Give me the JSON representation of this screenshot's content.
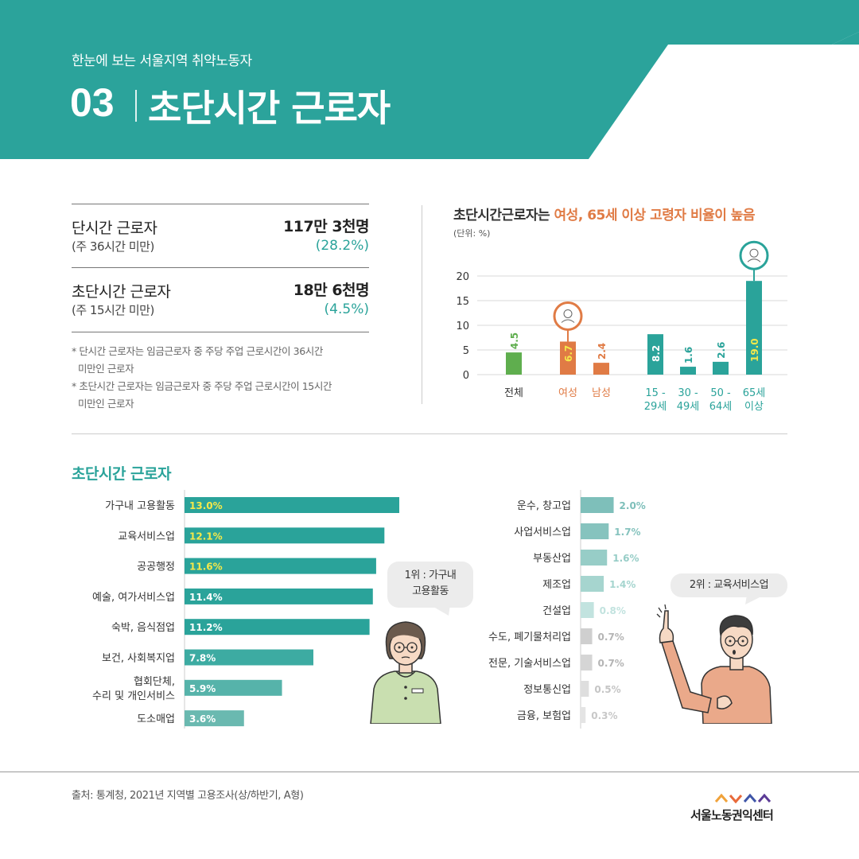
{
  "header": {
    "subtitle": "한눈에 보는 서울지역 취약노동자",
    "number": "03",
    "title": "초단시간 근로자"
  },
  "summary": [
    {
      "label": "단시간 근로자",
      "sub": "(주 36시간 미만)",
      "value": "117만 3천명",
      "pct": "(28.2%)"
    },
    {
      "label": "초단시간 근로자",
      "sub": "(주 15시간 미만)",
      "value": "18만 6천명",
      "pct": "(4.5%)"
    }
  ],
  "notes": [
    "* 단시간 근로자는 임금근로자 중 주당 주업 근로시간이 36시간",
    "미만인 근로자",
    "* 초단시간 근로자는 임금근로자 중 주당 주업 근로시간이 15시간",
    "미만인 근로자"
  ],
  "colors": {
    "teal": "#2aa39a",
    "orange": "#e07b45",
    "green": "#5fae4e",
    "yellow_label": "#f5e84a"
  },
  "chart_data": [
    {
      "type": "bar",
      "title_prefix": "초단시간근로자는 ",
      "title_highlight": "여성, 65세 이상 고령자 비율이 높음",
      "unit": "(단위: %)",
      "ylim": [
        0,
        20
      ],
      "yticks": [
        0,
        5,
        10,
        15,
        20
      ],
      "grid": true,
      "categories": [
        "전체",
        "여성",
        "남성",
        "15 - 29세",
        "30 - 49세",
        "50 - 64세",
        "65세 이상"
      ],
      "category_lines": [
        [
          "전체"
        ],
        [
          "여성"
        ],
        [
          "남성"
        ],
        [
          "15 -",
          "29세"
        ],
        [
          "30 -",
          "49세"
        ],
        [
          "50 -",
          "64세"
        ],
        [
          "65세",
          "이상"
        ]
      ],
      "value_labels": [
        "4.5",
        "6.7",
        "2.4",
        "8.2",
        "1.6",
        "2.6",
        "19.0"
      ],
      "values": [
        4.5,
        6.7,
        2.4,
        8.2,
        1.6,
        2.6,
        19.0
      ],
      "bar_colors": [
        "#5fae4e",
        "#e07b45",
        "#e07b45",
        "#2aa39a",
        "#2aa39a",
        "#2aa39a",
        "#2aa39a"
      ],
      "label_colors": [
        "#5fae4e",
        "#f5e84a",
        "#e07b45",
        "#ffffff",
        "#2aa39a",
        "#2aa39a",
        "#f5e84a"
      ],
      "label_inside": [
        false,
        true,
        false,
        true,
        false,
        false,
        true
      ],
      "markers": {
        "female_icon_on": "여성",
        "elder_icon_on": "65세 이상"
      }
    },
    {
      "type": "bar",
      "orientation": "horizontal",
      "title": "초단시간 근로자",
      "categories": [
        "가구내 고용활동",
        "교육서비스업",
        "공공행정",
        "예술, 여가서비스업",
        "숙박, 음식점업",
        "보건, 사회복지업",
        "협회단체, 수리 및 개인서비스",
        "도소매업"
      ],
      "category_lines": [
        [
          "가구내 고용활동"
        ],
        [
          "교육서비스업"
        ],
        [
          "공공행정"
        ],
        [
          "예술, 여가서비스업"
        ],
        [
          "숙박, 음식점업"
        ],
        [
          "보건, 사회복지업"
        ],
        [
          "협회단체,",
          "수리 및 개인서비스"
        ],
        [
          "도소매업"
        ]
      ],
      "value_labels": [
        "13.0%",
        "12.1%",
        "11.6%",
        "11.4%",
        "11.2%",
        "7.8%",
        "5.9%",
        "3.6%"
      ],
      "values": [
        13.0,
        12.1,
        11.6,
        11.4,
        11.2,
        7.8,
        5.9,
        3.6
      ],
      "bar_colors": [
        "#2aa39a",
        "#2aa39a",
        "#2aa39a",
        "#2aa39a",
        "#2aa39a",
        "#3daba2",
        "#56b3aa",
        "#6ab9b0"
      ],
      "label_colors": [
        "#f5e84a",
        "#f5e84a",
        "#f5e84a",
        "#ffffff",
        "#ffffff",
        "#ffffff",
        "#ffffff",
        "#ffffff"
      ],
      "xlim": [
        0,
        13.0
      ]
    },
    {
      "type": "bar",
      "orientation": "horizontal",
      "categories": [
        "운수, 창고업",
        "사업서비스업",
        "부동산업",
        "제조업",
        "건설업",
        "수도, 폐기물처리업",
        "전문, 기술서비스업",
        "정보통신업",
        "금융, 보험업"
      ],
      "value_labels": [
        "2.0%",
        "1.7%",
        "1.6%",
        "1.4%",
        "0.8%",
        "0.7%",
        "0.7%",
        "0.5%",
        "0.3%"
      ],
      "values": [
        2.0,
        1.7,
        1.6,
        1.4,
        0.8,
        0.7,
        0.7,
        0.5,
        0.3
      ],
      "bar_colors": [
        "#7ebfba",
        "#86c3be",
        "#97cdc7",
        "#a6d5cf",
        "#c2e3df",
        "#cfcfcf",
        "#d5d5d5",
        "#dedede",
        "#e4e4e4"
      ],
      "label_colors": [
        "#7ebfba",
        "#86c3be",
        "#97cdc7",
        "#a6d5cf",
        "#c2e3df",
        "#b5b5b5",
        "#b5b5b5",
        "#c5c5c5",
        "#c8c8c8"
      ],
      "xlim": [
        0,
        13.0
      ]
    }
  ],
  "callouts": {
    "first": "1위 : 가구내\n고용활동",
    "second": "2위 : 교육서비스업"
  },
  "footer": {
    "source": "출처: 통계청, 2021년 지역별 고용조사(상/하반기, A형)",
    "org": "서울노동권익센터"
  }
}
